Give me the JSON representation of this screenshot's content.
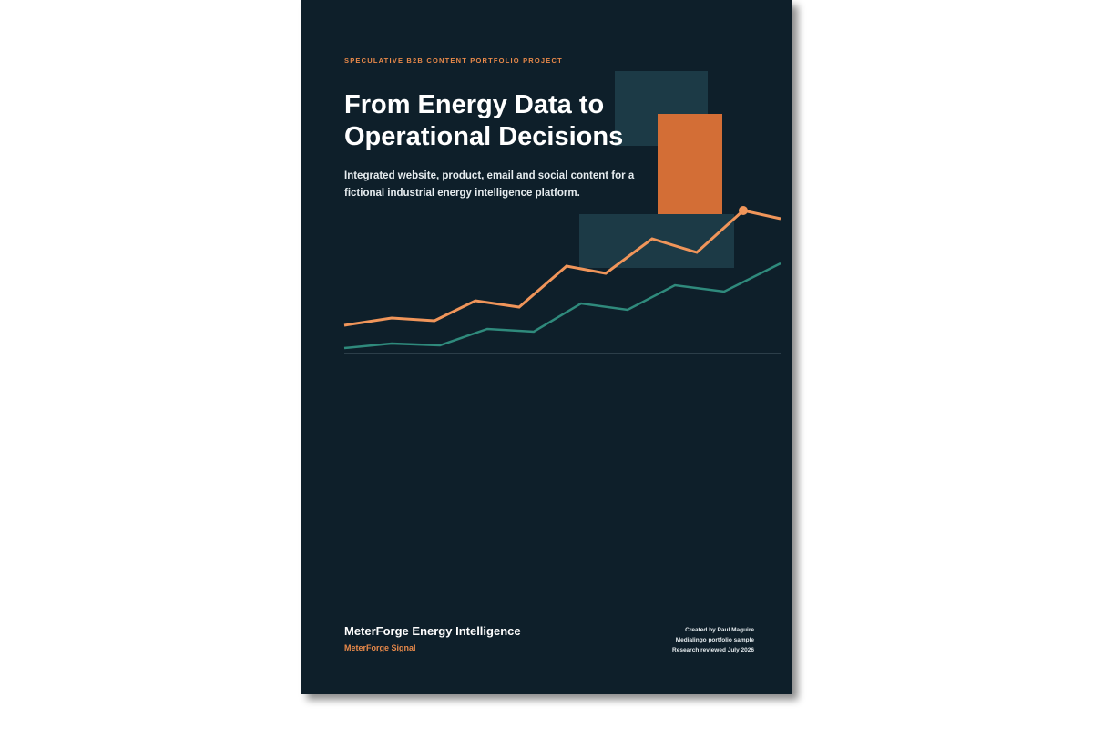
{
  "cover": {
    "eyebrow": "SPECULATIVE B2B CONTENT PORTFOLIO PROJECT",
    "title_lines": [
      "From Energy Data to",
      "Operational Decisions"
    ],
    "subtitle_lines": [
      "Integrated website, product, email and social content for a",
      "fictional industrial energy intelligence platform."
    ],
    "brand": "MeterForge Energy Intelligence",
    "sub_brand": "MeterForge Signal",
    "credits": [
      "Created by Paul Maguire",
      "Medialingo portfolio sample",
      "Research reviewed July 2026"
    ]
  }
}
